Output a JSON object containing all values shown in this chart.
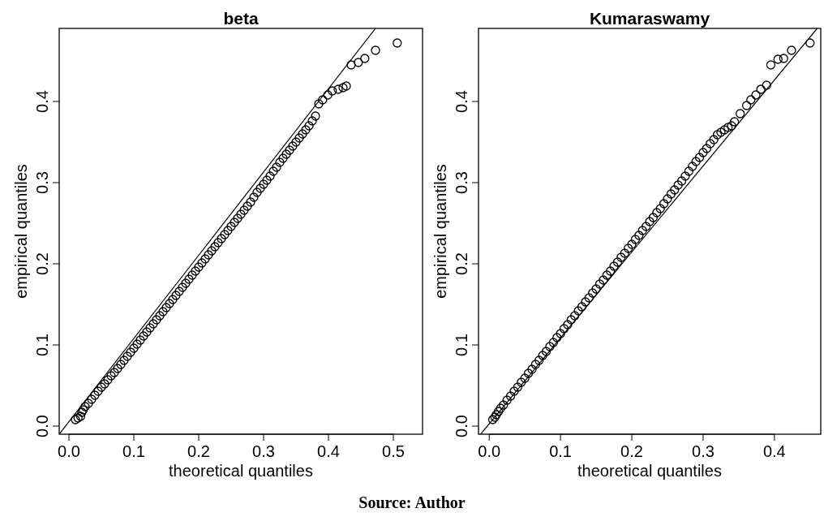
{
  "chart_data": [
    {
      "type": "scatter",
      "title": "beta",
      "xlabel": "theoretical quantiles",
      "ylabel": "empirical quantiles",
      "xlim": [
        -0.015,
        0.545
      ],
      "ylim": [
        -0.01,
        0.49
      ],
      "xticks": [
        {
          "value": 0,
          "label": "0.0"
        },
        0.1,
        0.2,
        0.3,
        0.4,
        0.5
      ],
      "yticks": [
        {
          "value": 0,
          "label": "0.0"
        },
        0.1,
        0.2,
        0.3,
        0.4
      ],
      "annotations": [
        "Source: Author"
      ],
      "series": [
        {
          "marker": "circle",
          "color": "#000000",
          "x": [
            0.01,
            0.014,
            0.018,
            0.02,
            0.022,
            0.025,
            0.03,
            0.035,
            0.04,
            0.045,
            0.05,
            0.055,
            0.06,
            0.065,
            0.07,
            0.075,
            0.08,
            0.085,
            0.09,
            0.095,
            0.1,
            0.105,
            0.11,
            0.115,
            0.12,
            0.125,
            0.13,
            0.135,
            0.14,
            0.145,
            0.15,
            0.155,
            0.16,
            0.165,
            0.17,
            0.175,
            0.18,
            0.185,
            0.19,
            0.195,
            0.2,
            0.205,
            0.21,
            0.215,
            0.22,
            0.225,
            0.23,
            0.235,
            0.24,
            0.245,
            0.25,
            0.255,
            0.26,
            0.265,
            0.27,
            0.275,
            0.28,
            0.285,
            0.29,
            0.295,
            0.3,
            0.305,
            0.31,
            0.315,
            0.32,
            0.325,
            0.33,
            0.335,
            0.34,
            0.345,
            0.35,
            0.355,
            0.36,
            0.365,
            0.37,
            0.375,
            0.38,
            0.385,
            0.391,
            0.399,
            0.406,
            0.415,
            0.4225,
            0.4275,
            0.435,
            0.446,
            0.456,
            0.4725,
            0.506
          ],
          "values": [
            0.008,
            0.01,
            0.012,
            0.017,
            0.02,
            0.024,
            0.028,
            0.033,
            0.038,
            0.043,
            0.048,
            0.052,
            0.057,
            0.062,
            0.066,
            0.071,
            0.076,
            0.081,
            0.086,
            0.091,
            0.096,
            0.101,
            0.106,
            0.111,
            0.116,
            0.121,
            0.126,
            0.131,
            0.136,
            0.141,
            0.146,
            0.151,
            0.156,
            0.161,
            0.166,
            0.171,
            0.176,
            0.181,
            0.186,
            0.191,
            0.196,
            0.201,
            0.206,
            0.211,
            0.216,
            0.221,
            0.226,
            0.231,
            0.236,
            0.241,
            0.246,
            0.251,
            0.256,
            0.261,
            0.266,
            0.271,
            0.276,
            0.282,
            0.288,
            0.293,
            0.298,
            0.303,
            0.308,
            0.314,
            0.319,
            0.325,
            0.33,
            0.335,
            0.34,
            0.345,
            0.35,
            0.355,
            0.36,
            0.365,
            0.37,
            0.376,
            0.382,
            0.397,
            0.402,
            0.408,
            0.413,
            0.415,
            0.417,
            0.419,
            0.445,
            0.448,
            0.453,
            0.463,
            0.472
          ]
        },
        {
          "type": "line",
          "color": "#000000",
          "x": [
            -0.015,
            0.4725
          ],
          "values": [
            -0.01,
            0.49
          ]
        }
      ]
    },
    {
      "type": "scatter",
      "title": "Kumaraswamy",
      "xlabel": "theoretical quantiles",
      "ylabel": "empirical quantiles",
      "xlim": [
        -0.015,
        0.465
      ],
      "ylim": [
        -0.01,
        0.49
      ],
      "xticks": [
        {
          "value": 0,
          "label": "0.0"
        },
        0.1,
        0.2,
        0.3,
        0.4
      ],
      "yticks": [
        {
          "value": 0,
          "label": "0.0"
        },
        0.1,
        0.2,
        0.3,
        0.4
      ],
      "series": [
        {
          "marker": "circle",
          "color": "#000000",
          "x": [
            0.005,
            0.008,
            0.01,
            0.013,
            0.016,
            0.02,
            0.025,
            0.03,
            0.035,
            0.04,
            0.045,
            0.05,
            0.055,
            0.06,
            0.065,
            0.07,
            0.075,
            0.08,
            0.085,
            0.09,
            0.095,
            0.1,
            0.105,
            0.11,
            0.115,
            0.12,
            0.125,
            0.13,
            0.135,
            0.14,
            0.145,
            0.15,
            0.155,
            0.16,
            0.165,
            0.17,
            0.175,
            0.18,
            0.185,
            0.19,
            0.195,
            0.2,
            0.205,
            0.21,
            0.215,
            0.22,
            0.225,
            0.23,
            0.235,
            0.24,
            0.245,
            0.25,
            0.255,
            0.26,
            0.265,
            0.27,
            0.275,
            0.28,
            0.285,
            0.29,
            0.295,
            0.3,
            0.305,
            0.31,
            0.315,
            0.32,
            0.325,
            0.33,
            0.335,
            0.34,
            0.344,
            0.352,
            0.361,
            0.367,
            0.374,
            0.381,
            0.389,
            0.395,
            0.405,
            0.413,
            0.424,
            0.45
          ],
          "values": [
            0.008,
            0.011,
            0.014,
            0.018,
            0.022,
            0.026,
            0.032,
            0.037,
            0.043,
            0.048,
            0.054,
            0.059,
            0.065,
            0.07,
            0.076,
            0.081,
            0.087,
            0.092,
            0.098,
            0.103,
            0.109,
            0.114,
            0.12,
            0.125,
            0.131,
            0.136,
            0.142,
            0.147,
            0.153,
            0.158,
            0.164,
            0.169,
            0.175,
            0.18,
            0.186,
            0.191,
            0.197,
            0.202,
            0.208,
            0.213,
            0.219,
            0.224,
            0.23,
            0.235,
            0.241,
            0.246,
            0.252,
            0.257,
            0.263,
            0.268,
            0.274,
            0.28,
            0.286,
            0.291,
            0.297,
            0.302,
            0.308,
            0.314,
            0.32,
            0.326,
            0.331,
            0.337,
            0.342,
            0.348,
            0.353,
            0.359,
            0.362,
            0.365,
            0.368,
            0.37,
            0.375,
            0.385,
            0.395,
            0.402,
            0.408,
            0.415,
            0.42,
            0.445,
            0.452,
            0.453,
            0.463,
            0.472
          ]
        },
        {
          "type": "line",
          "color": "#000000",
          "x": [
            -0.012,
            0.46
          ],
          "values": [
            -0.01,
            0.49
          ]
        }
      ]
    }
  ]
}
